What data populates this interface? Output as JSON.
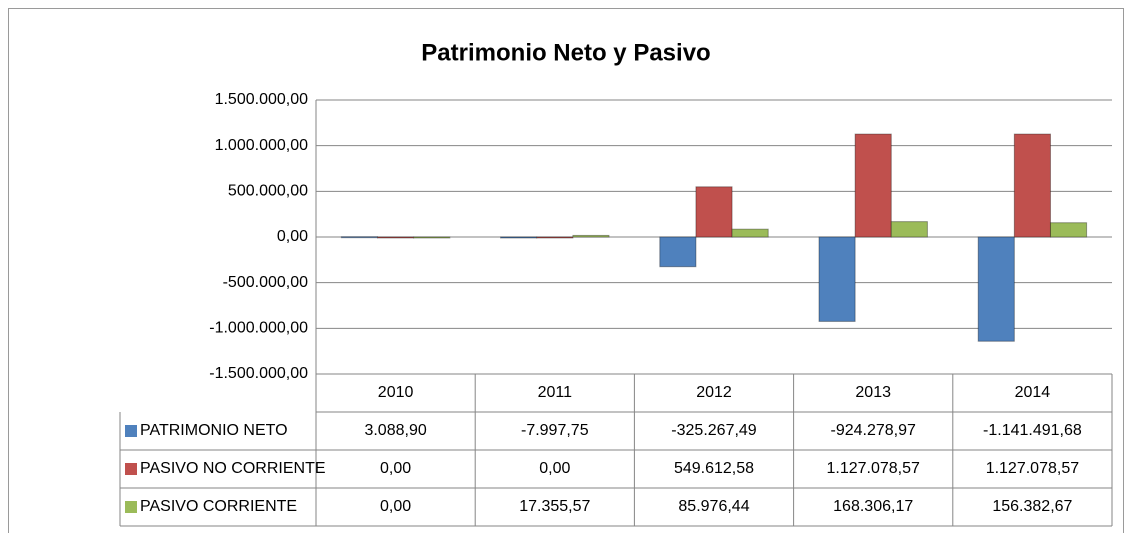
{
  "chart_data": {
    "type": "bar",
    "title": "Patrimonio Neto y Pasivo",
    "categories": [
      "2010",
      "2011",
      "2012",
      "2013",
      "2014"
    ],
    "series": [
      {
        "name": "PATRIMONIO NETO",
        "color": "#4f81bd",
        "values": [
          3088.9,
          -7997.75,
          -325267.49,
          -924278.97,
          -1141491.68
        ],
        "value_labels": [
          "3.088,90",
          "-7.997,75",
          "-325.267,49",
          "-924.278,97",
          "-1.141.491,68"
        ]
      },
      {
        "name": "PASIVO NO CORRIENTE",
        "color": "#c0504d",
        "values": [
          0,
          0,
          549612.58,
          1127078.57,
          1127078.57
        ],
        "value_labels": [
          "0,00",
          "0,00",
          "549.612,58",
          "1.127.078,57",
          "1.127.078,57"
        ]
      },
      {
        "name": "PASIVO CORRIENTE",
        "color": "#9bbb59",
        "values": [
          0,
          17355.57,
          85976.44,
          168306.17,
          156382.67
        ],
        "value_labels": [
          "0,00",
          "17.355,57",
          "85.976,44",
          "168.306,17",
          "156.382,67"
        ]
      }
    ],
    "ylim": [
      -1500000,
      1500000
    ],
    "yticks": [
      {
        "value": -1500000,
        "label": "-1.500.000,00"
      },
      {
        "value": -1000000,
        "label": "-1.000.000,00"
      },
      {
        "value": -500000,
        "label": "-500.000,00"
      },
      {
        "value": 0,
        "label": "0,00"
      },
      {
        "value": 500000,
        "label": "500.000,00"
      },
      {
        "value": 1000000,
        "label": "1.000.000,00"
      },
      {
        "value": 1500000,
        "label": "1.500.000,00"
      }
    ],
    "grid": true
  }
}
